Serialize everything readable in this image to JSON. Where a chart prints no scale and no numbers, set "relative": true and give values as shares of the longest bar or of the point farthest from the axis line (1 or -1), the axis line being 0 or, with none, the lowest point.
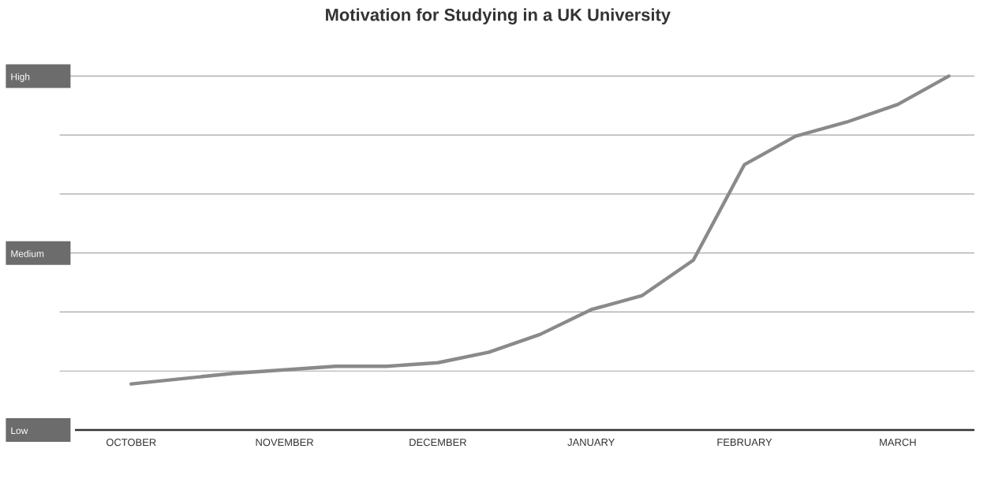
{
  "chart_data": {
    "type": "line",
    "title": "Motivation for Studying in a UK University",
    "categories": [
      "OCTOBER",
      null,
      null,
      "NOVEMBER",
      null,
      null,
      "DECEMBER",
      null,
      null,
      "JANUARY",
      null,
      null,
      "FEBRUARY",
      null,
      null,
      "MARCH",
      null
    ],
    "values": [
      0.13,
      0.145,
      0.16,
      0.17,
      0.18,
      0.18,
      0.19,
      0.22,
      0.27,
      0.34,
      0.38,
      0.48,
      0.75,
      0.83,
      0.87,
      0.92,
      1
    ],
    "relative": true,
    "color": "#8a8a8a",
    "annotations": [
      "Low",
      "Medium",
      "High"
    ],
    "grid": "y",
    "marker": "none",
    "line_style": "solid"
  }
}
